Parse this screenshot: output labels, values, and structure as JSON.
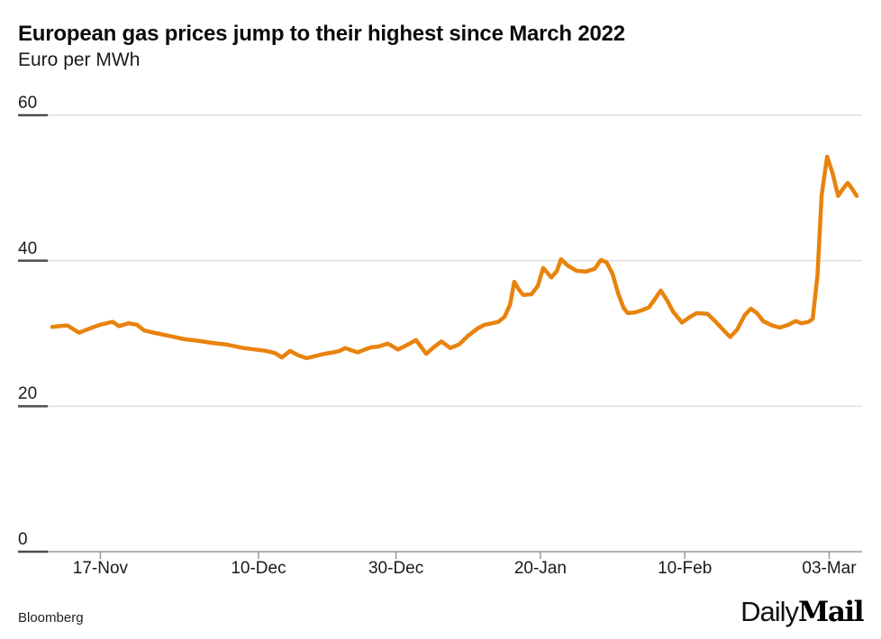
{
  "header": {
    "title": "European gas prices jump to their highest since March 2022",
    "subtitle": "Euro per MWh"
  },
  "footer": {
    "source": "Bloomberg",
    "logo_daily": "Daily",
    "logo_mail": "Mail"
  },
  "colors": {
    "line": "#E8830D",
    "gridline": "#DEDEDE",
    "axis_line": "#999999",
    "tick_label_underline": "#4D4D4D",
    "text": "#1A1A1A"
  },
  "chart_data": {
    "type": "line",
    "title": "European gas prices jump to their highest since March 2022",
    "ylabel": "Euro per MWh",
    "xlabel": "",
    "ylim": [
      0,
      60
    ],
    "x_total_days": 117,
    "grid": "horizontal",
    "legend": "none",
    "y_ticks": [
      {
        "label": "0",
        "value": 0
      },
      {
        "label": "20",
        "value": 20
      },
      {
        "label": "40",
        "value": 40
      },
      {
        "label": "60",
        "value": 60
      }
    ],
    "x_ticks": [
      {
        "label": "17-Nov",
        "day": 7
      },
      {
        "label": "10-Dec",
        "day": 30
      },
      {
        "label": "30-Dec",
        "day": 50
      },
      {
        "label": "20-Jan",
        "day": 71
      },
      {
        "label": "10-Feb",
        "day": 92
      },
      {
        "label": "03-Mar",
        "day": 113
      }
    ],
    "series": [
      {
        "name": "European gas price (Euro per MWh)",
        "points": [
          [
            0,
            30.9
          ],
          [
            1,
            31.0
          ],
          [
            2.2,
            31.1
          ],
          [
            3.9,
            30.1
          ],
          [
            5.5,
            30.7
          ],
          [
            7,
            31.2
          ],
          [
            8.8,
            31.6
          ],
          [
            9.7,
            31.0
          ],
          [
            11.1,
            31.4
          ],
          [
            12.3,
            31.2
          ],
          [
            13.4,
            30.4
          ],
          [
            15.3,
            30.0
          ],
          [
            17.3,
            29.6
          ],
          [
            19.3,
            29.2
          ],
          [
            21.2,
            29.0
          ],
          [
            23.2,
            28.7
          ],
          [
            25.2,
            28.5
          ],
          [
            27.8,
            28.0
          ],
          [
            29.5,
            27.8
          ],
          [
            31.1,
            27.6
          ],
          [
            32.4,
            27.3
          ],
          [
            33.4,
            26.7
          ],
          [
            34.6,
            27.6
          ],
          [
            35.8,
            27.0
          ],
          [
            37,
            26.6
          ],
          [
            38.3,
            26.9
          ],
          [
            39.6,
            27.2
          ],
          [
            40.9,
            27.4
          ],
          [
            41.8,
            27.6
          ],
          [
            42.6,
            28.0
          ],
          [
            43.5,
            27.7
          ],
          [
            44.4,
            27.4
          ],
          [
            45.5,
            27.8
          ],
          [
            46.4,
            28.1
          ],
          [
            47.4,
            28.2
          ],
          [
            48.8,
            28.6
          ],
          [
            50.3,
            27.8
          ],
          [
            51.6,
            28.4
          ],
          [
            52.9,
            29.1
          ],
          [
            54.4,
            27.2
          ],
          [
            55.6,
            28.2
          ],
          [
            56.6,
            28.9
          ],
          [
            57.9,
            28.0
          ],
          [
            59.2,
            28.5
          ],
          [
            60.5,
            29.7
          ],
          [
            61.9,
            30.7
          ],
          [
            62.9,
            31.2
          ],
          [
            64,
            31.4
          ],
          [
            64.9,
            31.6
          ],
          [
            65.8,
            32.3
          ],
          [
            66.6,
            34.0
          ],
          [
            67.2,
            37.1
          ],
          [
            67.9,
            36.0
          ],
          [
            68.5,
            35.3
          ],
          [
            69.7,
            35.4
          ],
          [
            70.6,
            36.5
          ],
          [
            71.4,
            39.0
          ],
          [
            72.6,
            37.7
          ],
          [
            73.4,
            38.6
          ],
          [
            74,
            40.2
          ],
          [
            75,
            39.3
          ],
          [
            76.3,
            38.6
          ],
          [
            77.6,
            38.5
          ],
          [
            78.9,
            38.9
          ],
          [
            79.8,
            40.1
          ],
          [
            80.6,
            39.8
          ],
          [
            81.5,
            38.2
          ],
          [
            82.3,
            35.5
          ],
          [
            83.1,
            33.5
          ],
          [
            83.7,
            32.8
          ],
          [
            84.8,
            32.9
          ],
          [
            85.8,
            33.2
          ],
          [
            86.8,
            33.6
          ],
          [
            87.7,
            34.8
          ],
          [
            88.5,
            35.9
          ],
          [
            89.4,
            34.6
          ],
          [
            90.3,
            33.0
          ],
          [
            91.6,
            31.5
          ],
          [
            92.8,
            32.3
          ],
          [
            93.7,
            32.8
          ],
          [
            95.3,
            32.7
          ],
          [
            96.6,
            31.5
          ],
          [
            97.6,
            30.5
          ],
          [
            98.6,
            29.5
          ],
          [
            99.6,
            30.5
          ],
          [
            100.7,
            32.5
          ],
          [
            101.6,
            33.4
          ],
          [
            102.5,
            32.8
          ],
          [
            103.4,
            31.7
          ],
          [
            104.7,
            31.1
          ],
          [
            105.8,
            30.8
          ],
          [
            107.1,
            31.2
          ],
          [
            108.1,
            31.7
          ],
          [
            109,
            31.4
          ],
          [
            110,
            31.6
          ],
          [
            110.6,
            32.0
          ],
          [
            111.3,
            38.0
          ],
          [
            111.9,
            49.0
          ],
          [
            112.7,
            54.3
          ],
          [
            113.5,
            52.0
          ],
          [
            114.3,
            48.9
          ],
          [
            115.1,
            50.0
          ],
          [
            115.7,
            50.7
          ],
          [
            116.4,
            49.8
          ],
          [
            117,
            48.9
          ]
        ]
      }
    ]
  }
}
